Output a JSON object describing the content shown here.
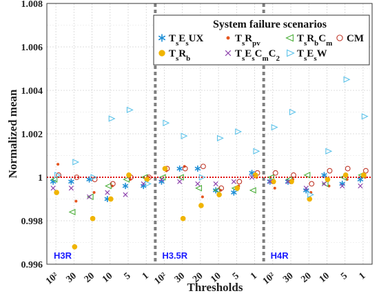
{
  "chart_data": {
    "type": "scatter",
    "xlabel": "Thresholds",
    "ylabel": "Normalized mean",
    "ylim": [
      0.996,
      1.008
    ],
    "yticks": [
      "0.996",
      "0.998",
      "1",
      "1.002",
      "1.004",
      "1.006",
      "1.008"
    ],
    "ytick_values": [
      0.996,
      0.998,
      1.0,
      1.002,
      1.004,
      1.006,
      1.008
    ],
    "categories": [
      "10²",
      "30",
      "20",
      "10",
      "5",
      "1",
      "10²",
      "30",
      "20",
      "10",
      "5",
      "1",
      "10²",
      "30",
      "20",
      "10",
      "5",
      "1"
    ],
    "regions": [
      {
        "label": "H3R",
        "color": "#1a1aff",
        "start_index": 0
      },
      {
        "label": "H3.5R",
        "color": "#1a1aff",
        "start_index": 6
      },
      {
        "label": "H4R",
        "color": "#1a1aff",
        "start_index": 12
      }
    ],
    "reference_line": 1.0,
    "grid": true,
    "legend": {
      "title": "System failure scenarios",
      "position": "top-right"
    },
    "series": [
      {
        "name": "TsEsUX",
        "marker": "asterisk",
        "color": "#1f8fd6",
        "values": [
          0.9998,
          0.9998,
          0.9999,
          0.999,
          0.9996,
          0.9996,
          0.9998,
          1.0004,
          1.0004,
          0.9994,
          0.9993,
          1.0002,
          0.9998,
          0.9998,
          0.9994,
          1.0001,
          0.9997,
          0.9999
        ]
      },
      {
        "name": "TsRpv",
        "marker": "dot",
        "color": "#e6551f",
        "values": [
          1.0006,
          0.9989,
          0.9993,
          0.9996,
          0.9999,
          1.0,
          1.0003,
          1.0005,
          0.9991,
          0.9994,
          0.9996,
          1.0,
          0.9995,
          0.9999,
          0.9993,
          0.9996,
          0.9999,
          1.0
        ]
      },
      {
        "name": "TsRbCm",
        "marker": "triangle-left",
        "color": "#4caf3a",
        "values": [
          0.9999,
          0.9984,
          0.9991,
          0.9996,
          0.9999,
          1.0,
          1.0,
          1.0,
          0.9995,
          0.9994,
          0.9995,
          0.9994,
          1.0,
          0.9999,
          1.0001,
          0.9997,
          1.0,
          1.0001
        ]
      },
      {
        "name": "CM",
        "marker": "circle-open",
        "color": "#c0392b",
        "values": [
          1.0001,
          1.0,
          0.9999,
          0.9997,
          1.0,
          1.0,
          1.0004,
          1.0004,
          1.0005,
          0.9995,
          0.9998,
          1.0002,
          1.0002,
          1.0001,
          0.9997,
          1.0003,
          1.0004,
          1.0003
        ]
      },
      {
        "name": "TsRb",
        "marker": "circle-filled",
        "color": "#f0b400",
        "values": [
          0.9993,
          0.9968,
          0.9981,
          0.999,
          1.0001,
          0.9999,
          1.0004,
          0.9981,
          0.9987,
          0.9992,
          0.9995,
          1.0001,
          0.9998,
          0.9998,
          0.999,
          0.9999,
          1.0001,
          1.0001
        ]
      },
      {
        "name": "TsEsCmC2",
        "marker": "x",
        "color": "#8e44ad",
        "values": [
          0.9995,
          0.9995,
          0.9991,
          0.9993,
          0.9992,
          0.9997,
          0.9999,
          0.9998,
          0.9997,
          0.9997,
          0.9998,
          1.0,
          0.9998,
          0.9998,
          0.9995,
          0.9997,
          0.9996,
          0.9996
        ]
      },
      {
        "name": "TsEsW",
        "marker": "triangle-right",
        "color": "#5dc3ea",
        "values": [
          1.0001,
          1.0007,
          1.0,
          1.0027,
          1.0031,
          0.9997,
          1.0025,
          1.0019,
          1.0,
          1.0018,
          1.0021,
          1.0012,
          1.0023,
          1.003,
          0.9992,
          1.0012,
          1.0045,
          1.0028
        ]
      }
    ]
  }
}
